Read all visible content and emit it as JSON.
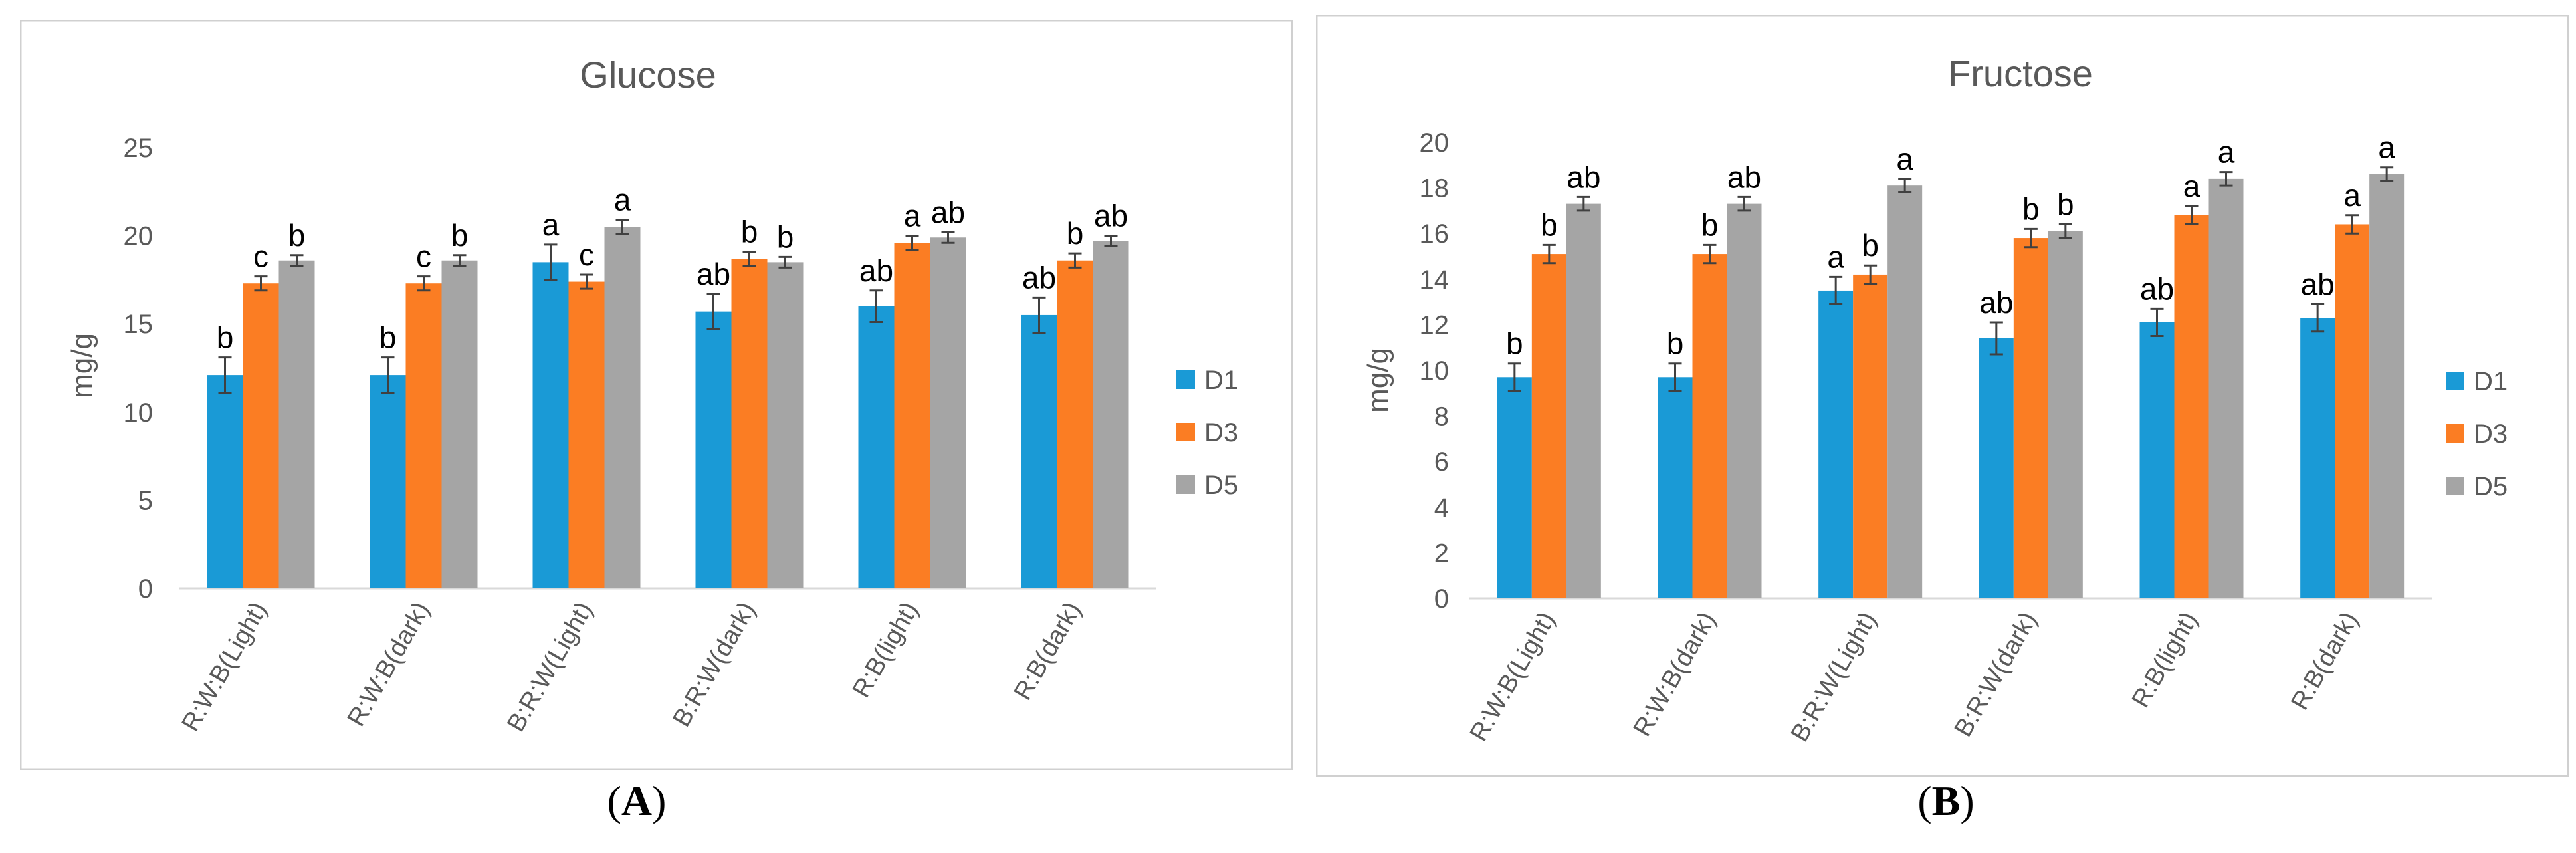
{
  "colors": {
    "D1": "#1a9ad6",
    "D3": "#fb7d23",
    "D5": "#a5a5a5",
    "text": "#595959",
    "axis": "#d9d9d9",
    "frame": "#d0d0d0",
    "error": "#404040"
  },
  "panel_labels": [
    "A",
    "B"
  ],
  "chart_data": [
    {
      "type": "bar",
      "title": "Glucose",
      "xlabel": "",
      "ylabel": "mg/g",
      "ylim": [
        0,
        25
      ],
      "yticks": [
        0,
        5,
        10,
        15,
        20,
        25
      ],
      "grid": false,
      "legend_position": "right",
      "categories": [
        "R:W:B(Light)",
        "R:W:B(dark)",
        "B:R:W(Light)",
        "B:R:W(dark)",
        "R:B(light)",
        "R:B(dark)"
      ],
      "series": [
        {
          "name": "D1",
          "values": [
            12.1,
            12.1,
            18.5,
            15.7,
            16.0,
            15.5
          ],
          "errors": [
            1.0,
            1.0,
            1.0,
            1.0,
            0.9,
            1.0
          ],
          "letters": [
            "b",
            "b",
            "a",
            "ab",
            "ab",
            "ab"
          ]
        },
        {
          "name": "D3",
          "values": [
            17.3,
            17.3,
            17.4,
            18.7,
            19.6,
            18.6
          ],
          "errors": [
            0.4,
            0.4,
            0.4,
            0.4,
            0.4,
            0.4
          ],
          "letters": [
            "c",
            "c",
            "c",
            "b",
            "a",
            "b"
          ]
        },
        {
          "name": "D5",
          "values": [
            18.6,
            18.6,
            20.5,
            18.5,
            19.9,
            19.7
          ],
          "errors": [
            0.3,
            0.3,
            0.4,
            0.3,
            0.3,
            0.3
          ],
          "letters": [
            "b",
            "b",
            "a",
            "b",
            "ab",
            "ab"
          ]
        }
      ]
    },
    {
      "type": "bar",
      "title": "Fructose",
      "xlabel": "",
      "ylabel": "mg/g",
      "ylim": [
        0,
        20
      ],
      "yticks": [
        0,
        2,
        4,
        6,
        8,
        10,
        12,
        14,
        16,
        18,
        20
      ],
      "grid": false,
      "legend_position": "right",
      "categories": [
        "R:W:B(Light)",
        "R:W:B(dark)",
        "B:R:W(Light)",
        "B:R:W(dark)",
        "R:B(light)",
        "R:B(dark)"
      ],
      "series": [
        {
          "name": "D1",
          "values": [
            9.7,
            9.7,
            13.5,
            11.4,
            12.1,
            12.3
          ],
          "errors": [
            0.6,
            0.6,
            0.6,
            0.7,
            0.6,
            0.6
          ],
          "letters": [
            "b",
            "b",
            "a",
            "ab",
            "ab",
            "ab"
          ]
        },
        {
          "name": "D3",
          "values": [
            15.1,
            15.1,
            14.2,
            15.8,
            16.8,
            16.4
          ],
          "errors": [
            0.4,
            0.4,
            0.4,
            0.4,
            0.4,
            0.4
          ],
          "letters": [
            "b",
            "b",
            "b",
            "b",
            "a",
            "a"
          ]
        },
        {
          "name": "D5",
          "values": [
            17.3,
            17.3,
            18.1,
            16.1,
            18.4,
            18.6
          ],
          "errors": [
            0.3,
            0.3,
            0.3,
            0.3,
            0.3,
            0.3
          ],
          "letters": [
            "ab",
            "ab",
            "a",
            "b",
            "a",
            "a"
          ]
        }
      ]
    }
  ]
}
